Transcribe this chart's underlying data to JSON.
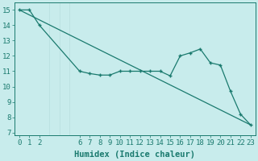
{
  "line1_x": [
    0,
    23
  ],
  "line1_y": [
    15.0,
    7.5
  ],
  "line2_x": [
    0,
    1,
    2,
    6,
    7,
    8,
    9,
    10,
    11,
    12,
    13,
    14,
    15,
    16,
    17,
    18,
    19,
    20,
    21,
    22,
    23
  ],
  "line2_y": [
    15.0,
    15.0,
    14.0,
    11.0,
    10.85,
    10.75,
    10.75,
    11.0,
    11.0,
    11.0,
    11.0,
    11.0,
    10.7,
    12.0,
    12.2,
    12.45,
    11.55,
    11.4,
    9.7,
    8.2,
    7.5
  ],
  "line_color": "#1a7a6e",
  "bg_color": "#c8ecec",
  "grid_color": "#a8d8d8",
  "xlabel": "Humidex (Indice chaleur)",
  "xticks": [
    0,
    1,
    2,
    6,
    7,
    8,
    9,
    10,
    11,
    12,
    13,
    14,
    15,
    16,
    17,
    18,
    19,
    20,
    21,
    22,
    23
  ],
  "yticks": [
    7,
    8,
    9,
    10,
    11,
    12,
    13,
    14,
    15
  ],
  "xlim": [
    -0.5,
    23.5
  ],
  "ylim": [
    6.8,
    15.5
  ],
  "xlabel_fontsize": 7.5,
  "tick_fontsize": 6.5
}
